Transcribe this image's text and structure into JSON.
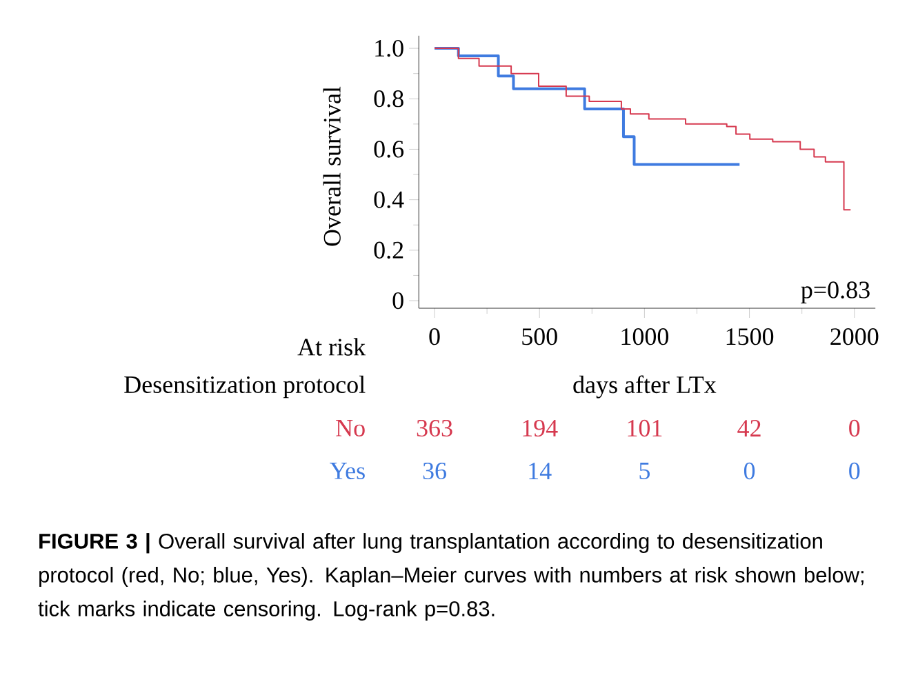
{
  "chart_data": {
    "type": "step",
    "ylabel": "Overall survival",
    "xlabel": "days after LTx",
    "xlim": [
      -75,
      2100
    ],
    "ylim": [
      -0.03,
      1.05
    ],
    "xticks": [
      0,
      {
        "value": 250,
        "label": null
      },
      500,
      {
        "value": 750,
        "label": null
      },
      1000,
      {
        "value": 1250,
        "label": null
      },
      1500,
      {
        "value": 1750,
        "label": null
      },
      2000
    ],
    "yticks": [
      0,
      {
        "value": 0.1,
        "label": null
      },
      0.2,
      {
        "value": 0.3,
        "label": null
      },
      0.4,
      {
        "value": 0.5,
        "label": null
      },
      0.6,
      {
        "value": 0.7,
        "label": null
      },
      0.8,
      {
        "value": 0.9,
        "label": null
      },
      {
        "value": 1,
        "label": "1.0"
      }
    ],
    "series": [
      {
        "name": "No",
        "color": "#d6394f",
        "x": [
          0,
          114,
          212,
          365,
          496,
          627,
          737,
          890,
          933,
          1021,
          1196,
          1392,
          1436,
          1502,
          1611,
          1742,
          1808,
          1862,
          1950,
          1982
        ],
        "values": [
          1.0,
          0.96,
          0.93,
          0.9,
          0.85,
          0.81,
          0.79,
          0.76,
          0.74,
          0.72,
          0.7,
          0.69,
          0.66,
          0.64,
          0.63,
          0.6,
          0.57,
          0.55,
          0.36,
          0.36
        ]
      },
      {
        "name": "Yes",
        "color": "#3f7be0",
        "x": [
          0,
          114,
          304,
          376,
          715,
          900,
          951,
          1453
        ],
        "values": [
          1.0,
          0.97,
          0.89,
          0.84,
          0.76,
          0.65,
          0.54,
          0.54
        ]
      }
    ],
    "annotations": [
      "p=0.83",
      "At risk",
      "Desensitization protocol",
      "363",
      "194",
      "101",
      "42",
      "0",
      "36",
      "14",
      "5",
      "0",
      "0",
      "**FIGURE 3 |** Overall survival after lung transplantation according to desensitization protocol (red, No; blue, Yes). Kaplan–Meier curves with numbers at risk shown below; tick marks indicate censoring. Log-rank p=0.83."
    ]
  }
}
